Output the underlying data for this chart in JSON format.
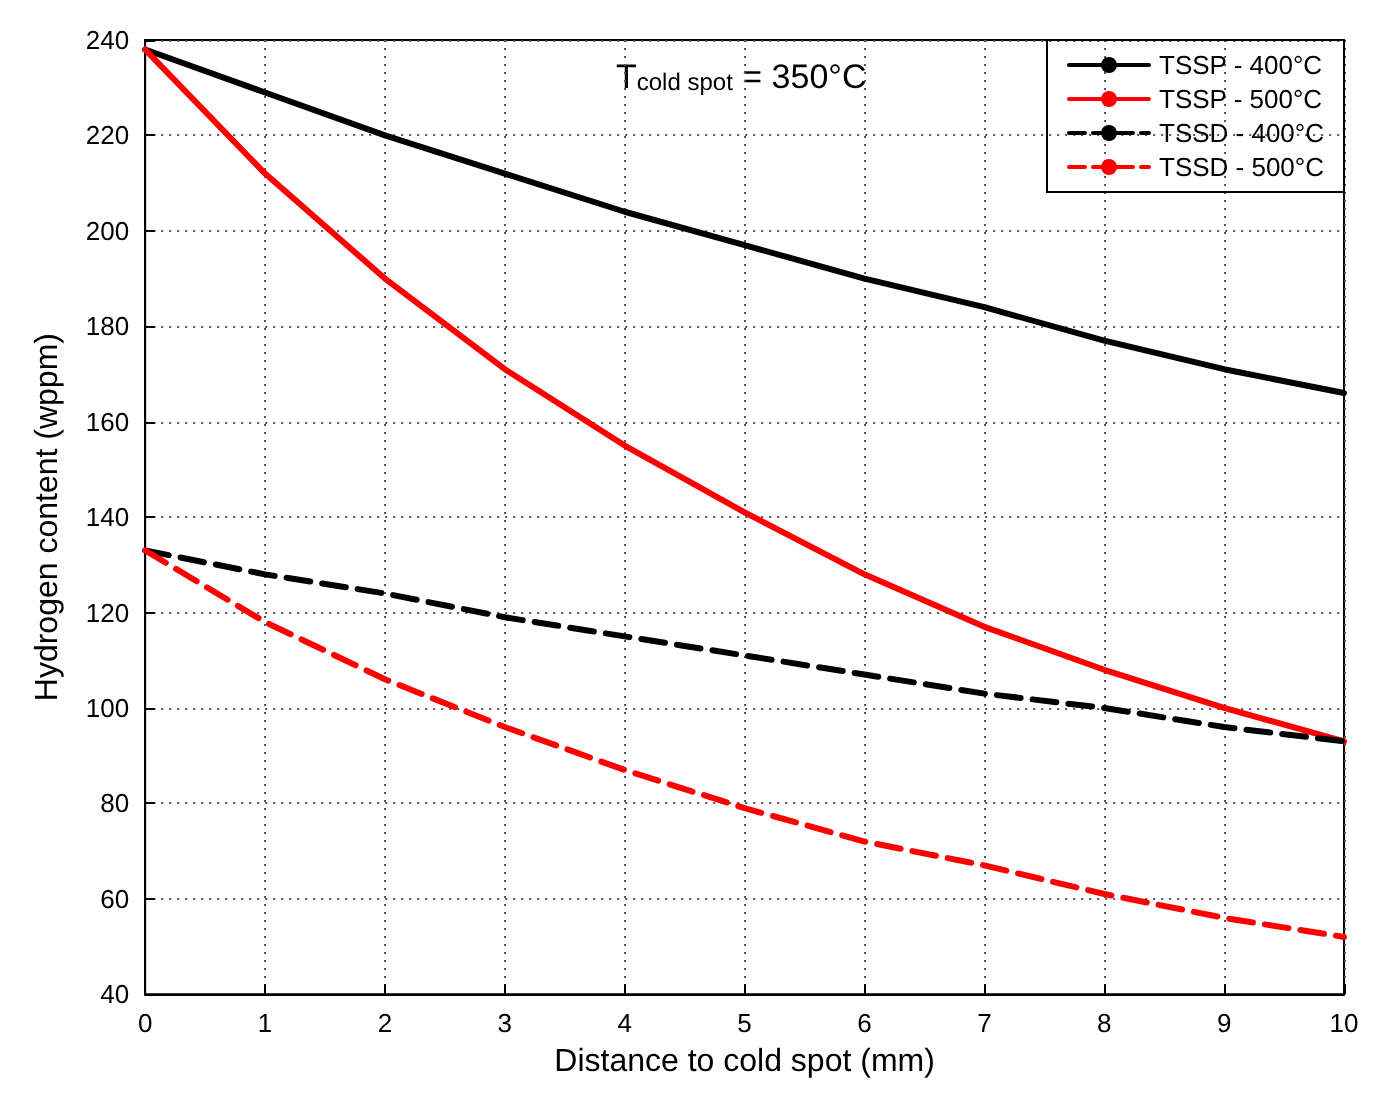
{
  "chart_data": {
    "type": "line",
    "xlabel": "Distance to cold spot (mm)",
    "ylabel": "Hydrogen content (wppm)",
    "annotations": [
      "T$_{cold spot}$ = 350°C"
    ],
    "x": [
      0,
      1,
      2,
      3,
      4,
      5,
      6,
      7,
      8,
      9,
      10
    ],
    "series": [
      {
        "name": "TSSP - 400°C",
        "color": "#000000",
        "line_style": "solid",
        "values": [
          238,
          229,
          220,
          212,
          204,
          197,
          190,
          184,
          177,
          171,
          166
        ]
      },
      {
        "name": "TSSP - 500°C",
        "color": "#ff0000",
        "line_style": "solid",
        "values": [
          238,
          212,
          190,
          171,
          155,
          141,
          128,
          117,
          108,
          100,
          93
        ]
      },
      {
        "name": "TSSD - 400°C",
        "color": "#000000",
        "line_style": "dashed",
        "values": [
          133,
          128,
          124,
          119,
          115,
          111,
          107,
          103,
          100,
          96,
          93
        ]
      },
      {
        "name": "TSSD - 500°C",
        "color": "#ff0000",
        "line_style": "dashed",
        "values": [
          133,
          118,
          106,
          96,
          87,
          79,
          72,
          67,
          61,
          56,
          52
        ]
      }
    ],
    "xlim": [
      0,
      10
    ],
    "xticks": [
      0,
      1,
      2,
      3,
      4,
      5,
      6,
      7,
      8,
      9,
      10
    ],
    "ylim": [
      40,
      240
    ],
    "yticks": [
      40,
      60,
      80,
      100,
      120,
      140,
      160,
      180,
      200,
      220,
      240
    ],
    "grid": true,
    "legend": "top right",
    "marker": "none"
  }
}
